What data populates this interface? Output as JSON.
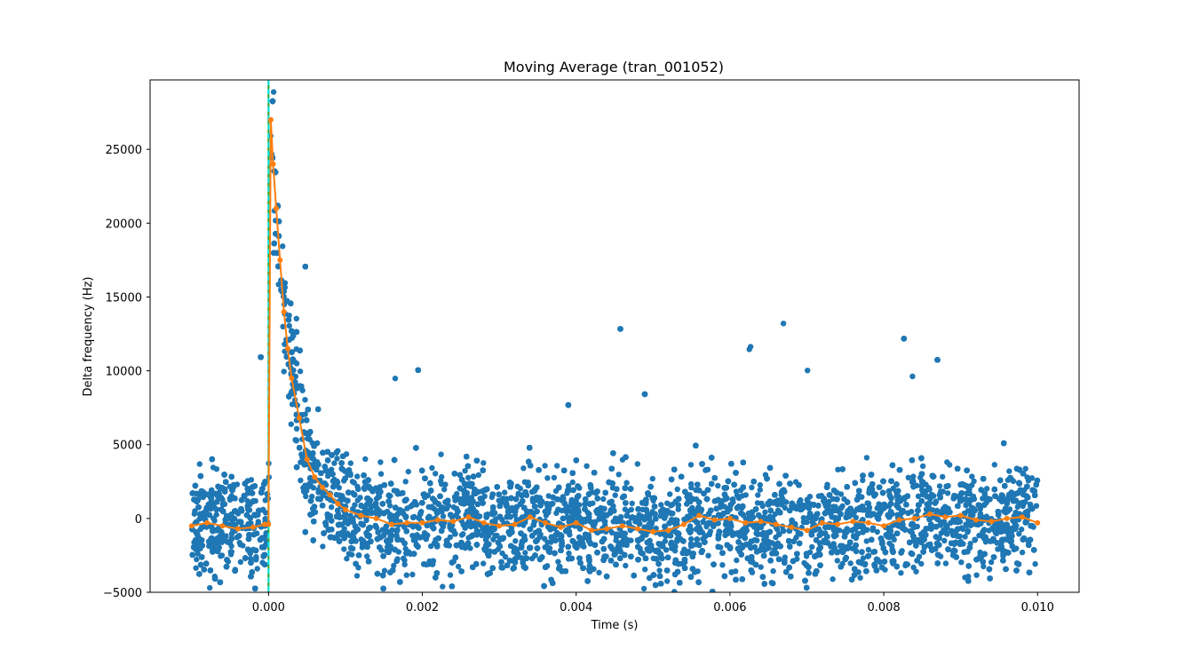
{
  "chart_data": {
    "type": "scatter",
    "title": "Moving Average (tran_001052)",
    "xlabel": "Time (s)",
    "ylabel": "Delta frequency (Hz)",
    "xlim": [
      -0.00154,
      0.01054
    ],
    "ylim": [
      -5000,
      29700
    ],
    "grid": false,
    "x_ticks": [
      0.0,
      0.002,
      0.004,
      0.006,
      0.008,
      0.01
    ],
    "x_tick_labels": [
      "0.000",
      "0.002",
      "0.004",
      "0.006",
      "0.008",
      "0.010"
    ],
    "y_ticks": [
      -5000,
      0,
      5000,
      10000,
      15000,
      20000,
      25000
    ],
    "y_tick_labels": [
      "−5000",
      "0",
      "5000",
      "10000",
      "15000",
      "20000",
      "25000"
    ],
    "series": [
      {
        "kind": "raw-scatter",
        "color": "#1f77b4",
        "x_range": [
          -0.001,
          0.01
        ],
        "baseline_band": [
          -5000,
          7000
        ],
        "noise_outliers_up_to": 14200,
        "decay": {
          "start_time": 0.0,
          "peak": 29700,
          "time_constant": 0.00025
        }
      },
      {
        "kind": "moving-average",
        "color": "#ff7f0e",
        "x": [
          -0.001,
          -0.0008,
          -0.0006,
          -0.0004,
          -0.0002,
          -5e-05,
          0.0,
          3e-05,
          6e-05,
          0.0001,
          0.00015,
          0.0002,
          0.00025,
          0.0003,
          0.0004,
          0.0005,
          0.0006,
          0.0007,
          0.0008,
          0.0009,
          0.001,
          0.0012,
          0.0014,
          0.0016,
          0.0018,
          0.002,
          0.0022,
          0.0024,
          0.0026,
          0.0028,
          0.003,
          0.0032,
          0.0034,
          0.0036,
          0.0038,
          0.004,
          0.0042,
          0.0044,
          0.0046,
          0.0048,
          0.005,
          0.0052,
          0.0054,
          0.0056,
          0.0058,
          0.006,
          0.0062,
          0.0064,
          0.0066,
          0.0068,
          0.007,
          0.0072,
          0.0074,
          0.0076,
          0.0078,
          0.008,
          0.0082,
          0.0084,
          0.0086,
          0.0088,
          0.009,
          0.0092,
          0.0094,
          0.0096,
          0.0098,
          0.01
        ],
        "y": [
          -500,
          -300,
          -500,
          -700,
          -600,
          -400,
          -400,
          27000,
          24000,
          21000,
          17500,
          14000,
          11500,
          9500,
          6800,
          4000,
          2800,
          2100,
          1600,
          1000,
          600,
          200,
          0,
          -400,
          -300,
          -300,
          -100,
          -200,
          100,
          -300,
          -500,
          -400,
          100,
          -300,
          -600,
          -300,
          -800,
          -700,
          -500,
          -700,
          -900,
          -800,
          -400,
          200,
          -100,
          0,
          -300,
          -200,
          -400,
          -600,
          -800,
          -300,
          -400,
          -200,
          -300,
          -500,
          -100,
          0,
          300,
          100,
          200,
          -100,
          -200,
          0,
          100,
          -300
        ]
      }
    ],
    "vertical_lines": [
      {
        "x": 0.0,
        "color": "#2ca02c",
        "style": "solid"
      },
      {
        "x": 0.0,
        "color": "#00e5e5",
        "style": "dashed"
      }
    ]
  }
}
